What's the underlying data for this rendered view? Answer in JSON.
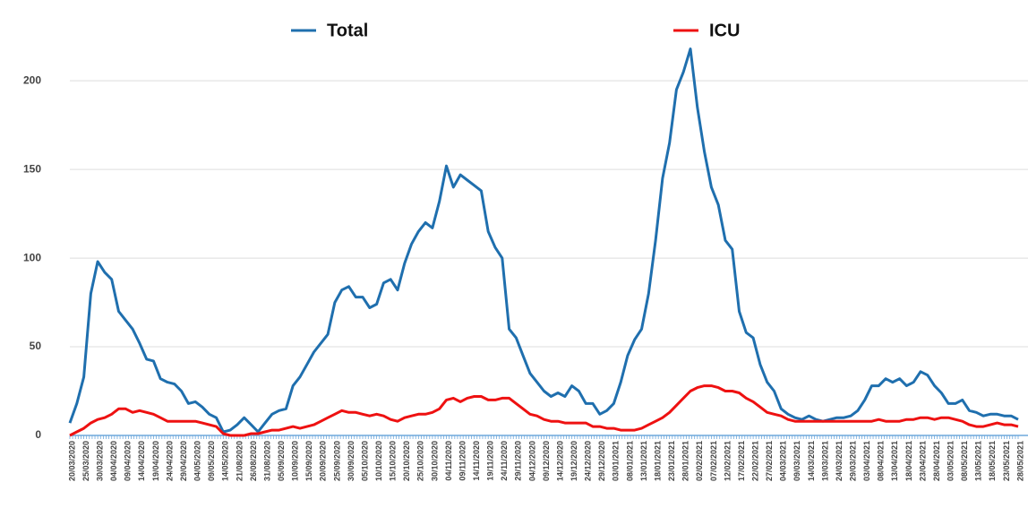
{
  "chart_data": {
    "type": "line",
    "categories": [
      "20/03/2020",
      null,
      "25/03/2020",
      null,
      "30/03/2020",
      null,
      "04/04/2020",
      null,
      "09/04/2020",
      null,
      "14/04/2020",
      null,
      "19/04/2020",
      null,
      "24/04/2020",
      null,
      "29/04/2020",
      null,
      "04/05/2020",
      null,
      "09/05/2020",
      null,
      "14/05/2020",
      null,
      "21/08/2020",
      null,
      "26/08/2020",
      null,
      "31/08/2020",
      null,
      "05/09/2020",
      null,
      "10/09/2020",
      null,
      "15/09/2020",
      null,
      "20/09/2020",
      null,
      "25/09/2020",
      null,
      "30/09/2020",
      null,
      "05/10/2020",
      null,
      "10/10/2020",
      null,
      "15/10/2020",
      null,
      "20/10/2020",
      null,
      "25/10/2020",
      null,
      "30/10/2020",
      null,
      "04/11/2020",
      null,
      "09/11/2020",
      null,
      "14/11/2020",
      null,
      "19/11/2020",
      null,
      "24/11/2020",
      null,
      "29/11/2020",
      null,
      "04/12/2020",
      null,
      "09/12/2020",
      null,
      "14/12/2020",
      null,
      "19/12/2020",
      null,
      "24/12/2020",
      null,
      "29/12/2020",
      null,
      "03/01/2021",
      null,
      "08/01/2021",
      null,
      "13/01/2021",
      null,
      "18/01/2021",
      null,
      "23/01/2021",
      null,
      "28/01/2021",
      null,
      "02/02/2021",
      null,
      "07/02/2021",
      null,
      "12/02/2021",
      null,
      "17/02/2021",
      null,
      "22/02/2021",
      null,
      "27/02/2021",
      null,
      "04/03/2021",
      null,
      "09/03/2021",
      null,
      "14/03/2021",
      null,
      "19/03/2021",
      null,
      "24/03/2021",
      null,
      "29/03/2021",
      null,
      "03/04/2021",
      null,
      "08/04/2021",
      null,
      "13/04/2021",
      null,
      "18/04/2021",
      null,
      "23/04/2021",
      null,
      "28/04/2021",
      null,
      "03/05/2021",
      null,
      "08/05/2021",
      null,
      "13/05/2021",
      null,
      "18/05/2021",
      null,
      "23/05/2021",
      null,
      "28/05/2021"
    ],
    "series": [
      {
        "name": "Total",
        "color": "#1f6fae",
        "values": [
          7,
          18,
          33,
          80,
          98,
          92,
          88,
          70,
          65,
          60,
          52,
          43,
          42,
          32,
          30,
          29,
          25,
          18,
          19,
          16,
          12,
          10,
          2,
          3,
          6,
          10,
          6,
          2,
          7,
          12,
          14,
          15,
          28,
          33,
          40,
          47,
          52,
          57,
          75,
          82,
          84,
          78,
          78,
          72,
          74,
          86,
          88,
          82,
          97,
          108,
          115,
          120,
          117,
          132,
          152,
          140,
          147,
          144,
          141,
          138,
          115,
          106,
          100,
          60,
          55,
          45,
          35,
          30,
          25,
          22,
          24,
          22,
          28,
          25,
          18,
          18,
          12,
          14,
          18,
          30,
          45,
          54,
          60,
          80,
          110,
          145,
          165,
          195,
          205,
          218,
          185,
          160,
          140,
          130,
          110,
          105,
          70,
          58,
          55,
          40,
          30,
          25,
          15,
          12,
          10,
          9,
          11,
          9,
          8,
          9,
          10,
          10,
          11,
          14,
          20,
          28,
          28,
          32,
          30,
          32,
          28,
          30,
          36,
          34,
          28,
          24,
          18,
          18,
          20,
          14,
          13,
          11,
          12,
          12,
          11,
          11,
          9
        ]
      },
      {
        "name": "ICU",
        "color": "#ee1111",
        "values": [
          0,
          2,
          4,
          7,
          9,
          10,
          12,
          15,
          15,
          13,
          14,
          13,
          12,
          10,
          8,
          8,
          8,
          8,
          8,
          7,
          6,
          5,
          1,
          0,
          0,
          0,
          1,
          1,
          2,
          3,
          3,
          4,
          5,
          4,
          5,
          6,
          8,
          10,
          12,
          14,
          13,
          13,
          12,
          11,
          12,
          11,
          9,
          8,
          10,
          11,
          12,
          12,
          13,
          15,
          20,
          21,
          19,
          21,
          22,
          22,
          20,
          20,
          21,
          21,
          18,
          15,
          12,
          11,
          9,
          8,
          8,
          7,
          7,
          7,
          7,
          5,
          5,
          4,
          4,
          3,
          3,
          3,
          4,
          6,
          8,
          10,
          13,
          17,
          21,
          25,
          27,
          28,
          28,
          27,
          25,
          25,
          24,
          21,
          19,
          16,
          13,
          12,
          11,
          9,
          8,
          8,
          8,
          8,
          8,
          8,
          8,
          8,
          8,
          8,
          8,
          8,
          9,
          8,
          8,
          8,
          9,
          9,
          10,
          10,
          9,
          10,
          10,
          9,
          8,
          6,
          5,
          5,
          6,
          7,
          6,
          6,
          5
        ]
      }
    ],
    "ylim": [
      0,
      240
    ],
    "yticks": [
      0,
      50,
      100,
      150,
      200
    ],
    "grid": true
  }
}
